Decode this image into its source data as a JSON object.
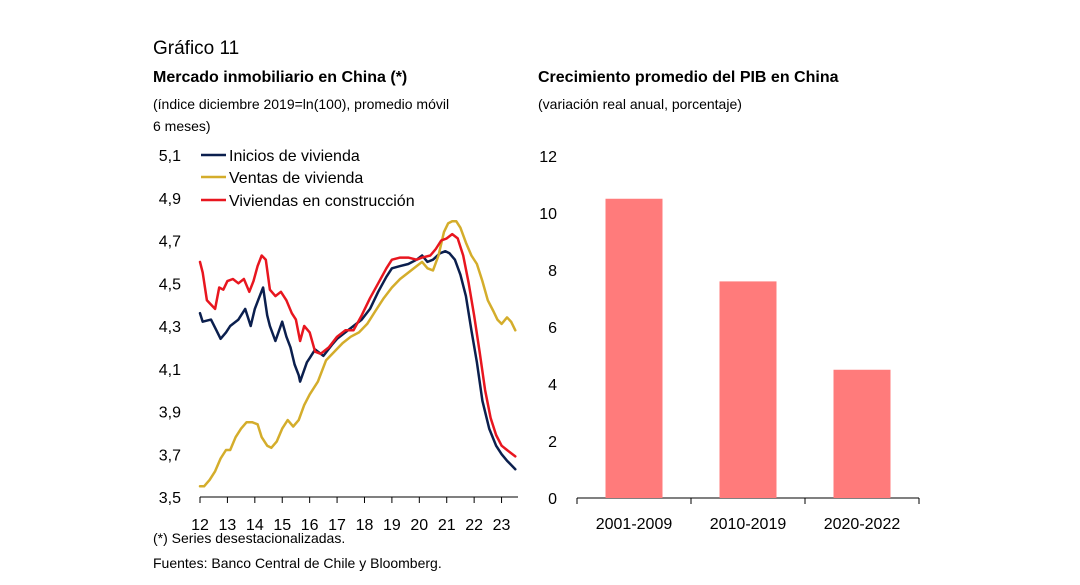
{
  "figure_label": "Gráfico 11",
  "footnote": "(*) Series desestacionalizadas.",
  "sources": "Fuentes: Banco Central de Chile y Bloomberg.",
  "colors": {
    "navy": "#0b1f4e",
    "gold": "#d4ad2b",
    "red": "#e8161f",
    "bar": "#ff7b7b"
  },
  "chart_data": [
    {
      "type": "line",
      "title": "Mercado inmobiliario en China (*)",
      "subtitle_line1": "(índice diciembre 2019=ln(100), promedio móvil",
      "subtitle_line2": "6 meses)",
      "xlabel": "",
      "ylabel": "",
      "xlim": [
        12,
        23.6
      ],
      "ylim": [
        3.5,
        5.1
      ],
      "y_ticks": [
        "5,1",
        "4,9",
        "4,7",
        "4,5",
        "4,3",
        "4,1",
        "3,9",
        "3,7",
        "3,5"
      ],
      "y_tick_values": [
        5.1,
        4.9,
        4.7,
        4.5,
        4.3,
        4.1,
        3.9,
        3.7,
        3.5
      ],
      "x_ticks": [
        "12",
        "13",
        "14",
        "15",
        "16",
        "17",
        "18",
        "19",
        "20",
        "21",
        "22",
        "23"
      ],
      "legend_position": "top-left",
      "series": [
        {
          "name": "Inicios de vivienda",
          "color": "#0b1f4e",
          "x": [
            12.0,
            12.1,
            12.4,
            12.6,
            12.75,
            12.95,
            13.1,
            13.4,
            13.65,
            13.85,
            14.0,
            14.15,
            14.3,
            14.45,
            14.55,
            14.75,
            15.0,
            15.15,
            15.3,
            15.45,
            15.6,
            15.65,
            15.9,
            16.0,
            16.2,
            16.5,
            16.8,
            17.0,
            17.3,
            17.6,
            17.9,
            18.2,
            18.5,
            18.8,
            19.0,
            19.3,
            19.6,
            19.9,
            20.1,
            20.3,
            20.5,
            20.75,
            20.95,
            21.1,
            21.3,
            21.5,
            21.7,
            21.9,
            22.1,
            22.3,
            22.55,
            22.8,
            23.0,
            23.2,
            23.35,
            23.5
          ],
          "y": [
            4.36,
            4.32,
            4.33,
            4.28,
            4.24,
            4.27,
            4.3,
            4.33,
            4.38,
            4.3,
            4.38,
            4.43,
            4.48,
            4.35,
            4.3,
            4.23,
            4.32,
            4.25,
            4.2,
            4.12,
            4.07,
            4.04,
            4.13,
            4.15,
            4.19,
            4.16,
            4.21,
            4.24,
            4.27,
            4.3,
            4.33,
            4.38,
            4.46,
            4.53,
            4.57,
            4.58,
            4.59,
            4.61,
            4.63,
            4.6,
            4.61,
            4.64,
            4.65,
            4.64,
            4.61,
            4.54,
            4.44,
            4.28,
            4.13,
            3.95,
            3.82,
            3.74,
            3.7,
            3.67,
            3.65,
            3.63
          ]
        },
        {
          "name": "Ventas de vivienda",
          "color": "#d4ad2b",
          "x": [
            12.0,
            12.15,
            12.35,
            12.55,
            12.75,
            12.95,
            13.1,
            13.3,
            13.5,
            13.7,
            13.9,
            14.1,
            14.25,
            14.45,
            14.6,
            14.8,
            15.0,
            15.2,
            15.4,
            15.6,
            15.8,
            16.0,
            16.3,
            16.6,
            16.9,
            17.2,
            17.5,
            17.8,
            18.1,
            18.4,
            18.7,
            19.0,
            19.3,
            19.6,
            19.9,
            20.1,
            20.3,
            20.5,
            20.7,
            20.9,
            21.05,
            21.2,
            21.35,
            21.5,
            21.7,
            21.9,
            22.1,
            22.3,
            22.5,
            22.7,
            22.85,
            23.0,
            23.2,
            23.35,
            23.5
          ],
          "y": [
            3.55,
            3.55,
            3.58,
            3.62,
            3.68,
            3.72,
            3.72,
            3.78,
            3.82,
            3.85,
            3.85,
            3.84,
            3.78,
            3.74,
            3.73,
            3.76,
            3.82,
            3.86,
            3.83,
            3.86,
            3.93,
            3.98,
            4.04,
            4.14,
            4.18,
            4.22,
            4.25,
            4.27,
            4.31,
            4.37,
            4.43,
            4.48,
            4.52,
            4.55,
            4.58,
            4.6,
            4.57,
            4.56,
            4.63,
            4.74,
            4.78,
            4.79,
            4.79,
            4.76,
            4.69,
            4.63,
            4.59,
            4.51,
            4.42,
            4.37,
            4.33,
            4.31,
            4.34,
            4.32,
            4.28
          ]
        },
        {
          "name": "Viviendas en construcción",
          "color": "#e8161f",
          "x": [
            12.0,
            12.1,
            12.25,
            12.4,
            12.55,
            12.7,
            12.85,
            13.0,
            13.2,
            13.4,
            13.6,
            13.8,
            13.95,
            14.1,
            14.25,
            14.4,
            14.55,
            14.75,
            14.95,
            15.15,
            15.35,
            15.5,
            15.65,
            15.8,
            16.0,
            16.2,
            16.4,
            16.7,
            17.0,
            17.3,
            17.6,
            17.9,
            18.2,
            18.5,
            18.8,
            19.0,
            19.3,
            19.6,
            19.9,
            20.1,
            20.4,
            20.6,
            20.8,
            21.0,
            21.2,
            21.4,
            21.6,
            21.8,
            22.0,
            22.2,
            22.4,
            22.6,
            22.8,
            23.0,
            23.2,
            23.4,
            23.5
          ],
          "y": [
            4.6,
            4.55,
            4.42,
            4.4,
            4.38,
            4.48,
            4.47,
            4.51,
            4.52,
            4.5,
            4.52,
            4.46,
            4.51,
            4.58,
            4.63,
            4.61,
            4.47,
            4.44,
            4.46,
            4.42,
            4.36,
            4.33,
            4.23,
            4.3,
            4.27,
            4.18,
            4.17,
            4.2,
            4.25,
            4.28,
            4.28,
            4.35,
            4.43,
            4.5,
            4.57,
            4.61,
            4.62,
            4.62,
            4.61,
            4.62,
            4.63,
            4.66,
            4.7,
            4.71,
            4.73,
            4.71,
            4.63,
            4.5,
            4.35,
            4.18,
            4.0,
            3.87,
            3.79,
            3.74,
            3.72,
            3.7,
            3.69
          ]
        }
      ]
    },
    {
      "type": "bar",
      "title": "Crecimiento promedio del PIB en China",
      "subtitle_line1": "(variación real anual, porcentaje)",
      "xlabel": "",
      "ylabel": "",
      "ylim": [
        0,
        12
      ],
      "y_ticks": [
        "12",
        "10",
        "8",
        "6",
        "4",
        "2",
        "0"
      ],
      "y_tick_values": [
        12,
        10,
        8,
        6,
        4,
        2,
        0
      ],
      "categories": [
        "2001-2009",
        "2010-2019",
        "2020-2022"
      ],
      "values": [
        10.5,
        7.6,
        4.5
      ],
      "color": "#ff7b7b"
    }
  ]
}
